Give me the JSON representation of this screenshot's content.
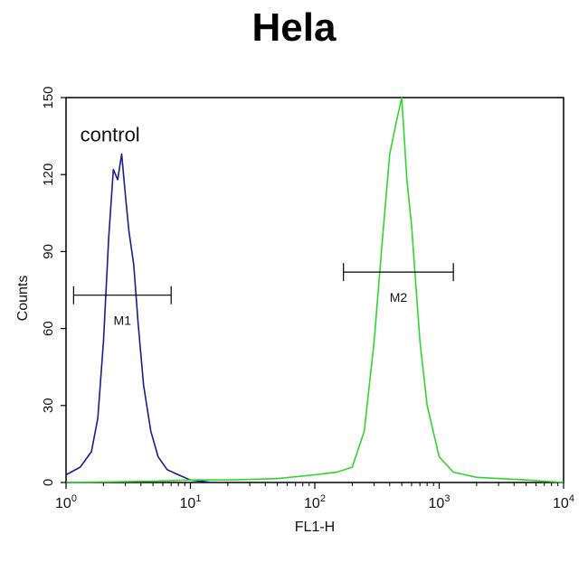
{
  "title": "Hela",
  "chart_data": {
    "type": "line",
    "title": "Hela",
    "xlabel": "FL1-H",
    "ylabel": "Counts",
    "xscale": "log",
    "xlim": [
      1,
      10000
    ],
    "ylim": [
      0,
      150
    ],
    "x_ticks": [
      {
        "value": 1,
        "base": "10",
        "exp": "0"
      },
      {
        "value": 10,
        "base": "10",
        "exp": "1"
      },
      {
        "value": 100,
        "base": "10",
        "exp": "2"
      },
      {
        "value": 1000,
        "base": "10",
        "exp": "3"
      },
      {
        "value": 10000,
        "base": "10",
        "exp": "4"
      }
    ],
    "y_ticks": [
      "0",
      "30",
      "60",
      "90",
      "120",
      "150"
    ],
    "annotations": [
      {
        "text": "control",
        "x": 1.3,
        "y": 133
      }
    ],
    "markers": [
      {
        "label": "M1",
        "x_start": 1.15,
        "x_end": 7.0,
        "y": 73
      },
      {
        "label": "M2",
        "x_start": 170,
        "x_end": 1300,
        "y": 82
      }
    ],
    "series": [
      {
        "color": "#1c1c8c",
        "x": [
          1,
          1.3,
          1.6,
          1.8,
          2.0,
          2.2,
          2.4,
          2.6,
          2.8,
          3.0,
          3.2,
          3.5,
          3.8,
          4.2,
          4.8,
          5.5,
          6.5,
          8,
          10,
          15
        ],
        "y": [
          3,
          6,
          12,
          25,
          55,
          95,
          122,
          118,
          128,
          112,
          98,
          85,
          62,
          38,
          20,
          10,
          5,
          3,
          1,
          0
        ]
      },
      {
        "color": "#2ed62e",
        "x": [
          1,
          5,
          10,
          20,
          50,
          100,
          150,
          200,
          250,
          300,
          350,
          400,
          450,
          500,
          550,
          600,
          700,
          800,
          1000,
          1300,
          2000,
          5000,
          10000
        ],
        "y": [
          0,
          0.5,
          1,
          1,
          1.5,
          3,
          4,
          6,
          20,
          55,
          95,
          128,
          140,
          150,
          118,
          100,
          55,
          30,
          10,
          4,
          2,
          1,
          0
        ]
      }
    ]
  }
}
